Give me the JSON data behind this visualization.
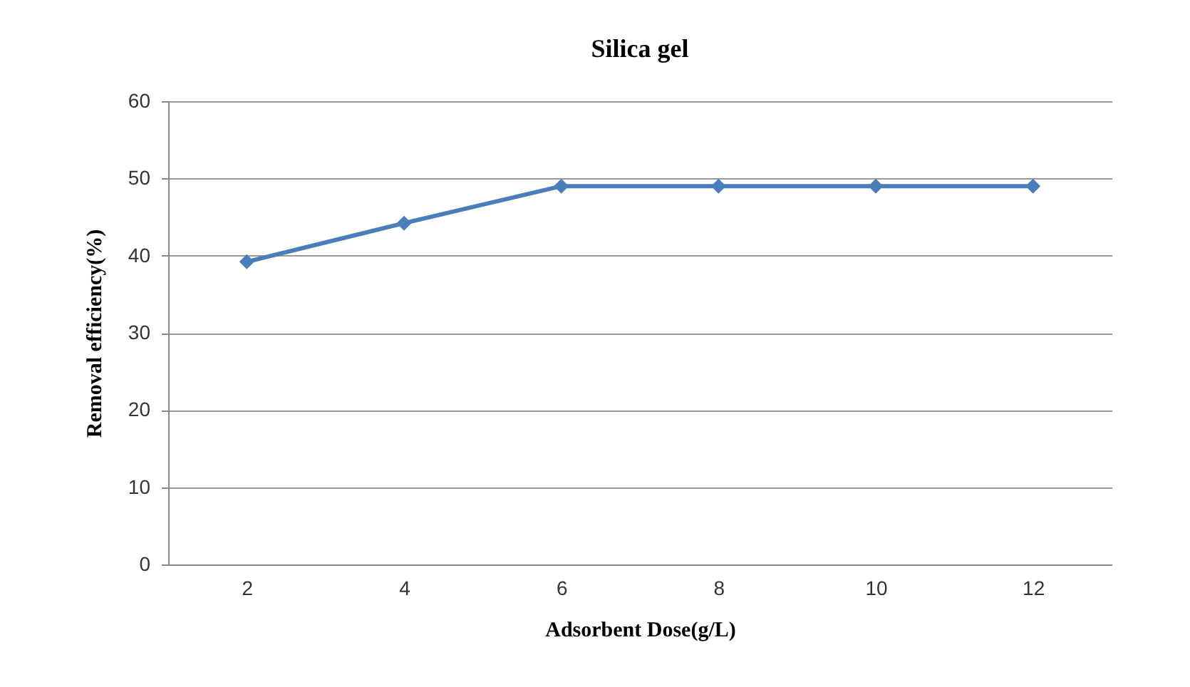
{
  "chart_data": {
    "type": "line",
    "title": "Silica gel",
    "xlabel": "Adsorbent Dose(g/L)",
    "ylabel": "Removal  efficiency(%)",
    "categories": [
      "2",
      "4",
      "6",
      "8",
      "10",
      "12"
    ],
    "series": [
      {
        "color": "#4a7ebb",
        "values": [
          39.2,
          44.2,
          49,
          49,
          49,
          49
        ]
      }
    ],
    "ylim": [
      0,
      60
    ],
    "yticks": [
      0,
      10,
      20,
      30,
      40,
      50,
      60
    ],
    "grid": "y",
    "marker": "diamond",
    "line_style": "solid"
  }
}
